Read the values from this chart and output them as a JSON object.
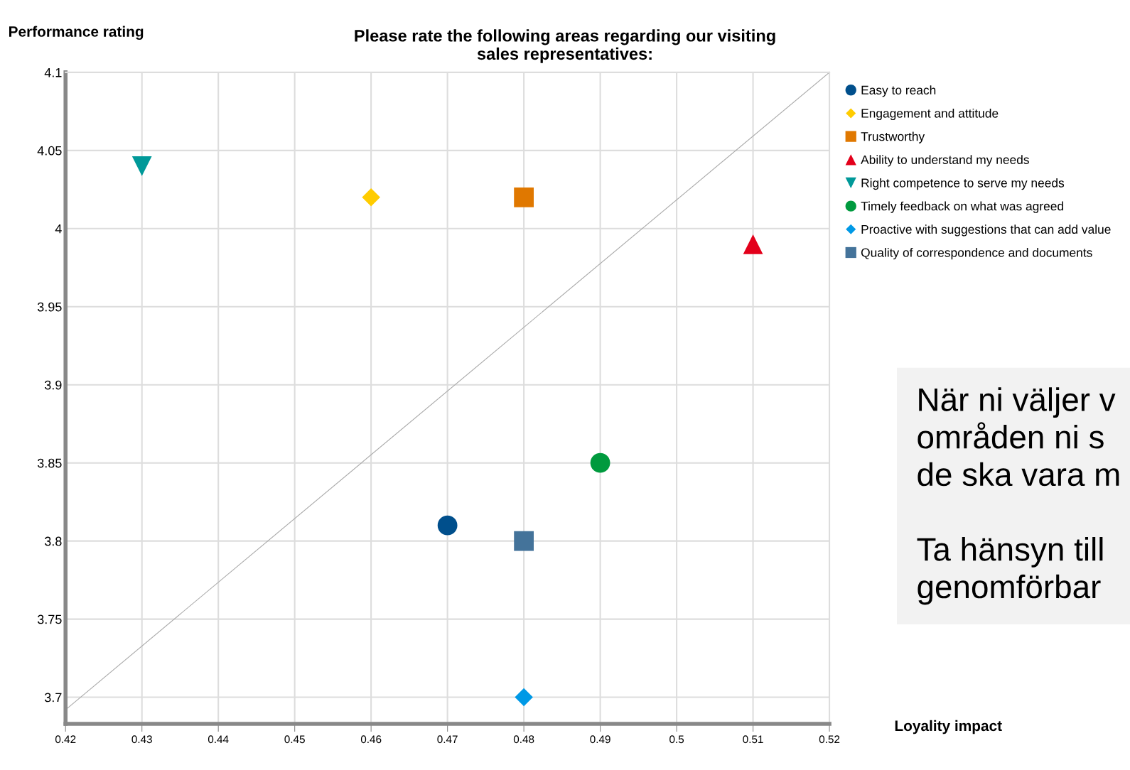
{
  "chart_data": {
    "type": "scatter",
    "title": "Please rate the following areas regarding our visiting\nsales representatives:",
    "ylabel": "Performance rating",
    "xlim": [
      0.42,
      0.52
    ],
    "xticks": [
      0.42,
      0.43,
      0.44,
      0.45,
      0.46,
      0.47,
      0.48,
      0.49,
      0.5,
      0.51,
      0.52
    ],
    "ylim": [
      3.683,
      4.1
    ],
    "yticks": [
      3.7,
      3.75,
      3.8,
      3.85,
      3.9,
      3.95,
      4,
      4.05,
      4.1
    ],
    "grid": true,
    "legend": "right",
    "series": [
      {
        "name": "Easy to reach",
        "color": "#004f8c",
        "marker": "circle",
        "x": [
          0.47
        ],
        "values": [
          3.81
        ]
      },
      {
        "name": "Engagement and attitude",
        "color": "#ffcc00",
        "marker": "diamond",
        "x": [
          0.46
        ],
        "values": [
          4.02
        ]
      },
      {
        "name": "Trustworthy",
        "color": "#e07800",
        "marker": "square",
        "x": [
          0.48
        ],
        "values": [
          4.02
        ]
      },
      {
        "name": "Ability to understand my needs",
        "color": "#e3001b",
        "marker": "triangle",
        "x": [
          0.51
        ],
        "values": [
          3.99
        ]
      },
      {
        "name": "Right competence to serve my needs",
        "color": "#009999",
        "marker": "triangle_down",
        "x": [
          0.43
        ],
        "values": [
          4.04
        ]
      },
      {
        "name": "Timely feedback on what was agreed",
        "color": "#009a3e",
        "marker": "circle",
        "x": [
          0.49
        ],
        "values": [
          3.85
        ]
      },
      {
        "name": "Proactive with suggestions that can add value",
        "color": "#0099e6",
        "marker": "diamond",
        "x": [
          0.48
        ],
        "values": [
          3.7
        ]
      },
      {
        "name": "Quality of correspondence and documents",
        "color": "#44739a",
        "marker": "square",
        "x": [
          0.48
        ],
        "values": [
          3.8
        ]
      },
      {
        "type": "line",
        "color": "#aaaaaa",
        "x": [
          0.42,
          0.52
        ],
        "values": [
          3.692,
          4.1
        ]
      }
    ],
    "annotations": [
      "Loyality impact",
      "När ni väljer v\nområden ni s\nde ska vara m\n\nTa hänsyn till\ngenomförbar"
    ]
  }
}
